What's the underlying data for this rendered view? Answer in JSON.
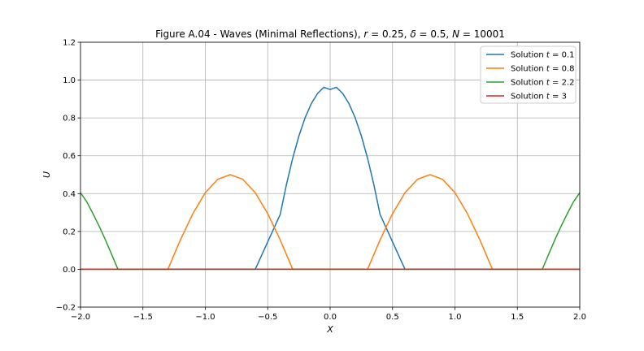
{
  "chart_data": {
    "type": "line",
    "title": "Figure A.04 - Waves (Minimal Reflections), r = 0.25, δ = 0.5, N = 10001",
    "title_parts": {
      "prefix": "Figure A.04 - Waves (Minimal Reflections), ",
      "r_sym": "r",
      "r_val": " = 0.25, ",
      "delta_sym": "δ",
      "delta_val": " = 0.5, ",
      "n_sym": "N",
      "n_val": " = 10001"
    },
    "xlabel": "X",
    "ylabel": "U",
    "xlim": [
      -2.0,
      2.0
    ],
    "ylim": [
      -0.2,
      1.2
    ],
    "xticks": [
      -2.0,
      -1.5,
      -1.0,
      -0.5,
      0.0,
      0.5,
      1.0,
      1.5,
      2.0
    ],
    "xtick_labels": [
      "−2.0",
      "−1.5",
      "−1.0",
      "−0.5",
      "0.0",
      "0.5",
      "1.0",
      "1.5",
      "2.0"
    ],
    "yticks": [
      -0.2,
      0.0,
      0.2,
      0.4,
      0.6,
      0.8,
      1.0,
      1.2
    ],
    "ytick_labels": [
      "−0.2",
      "0.0",
      "0.2",
      "0.4",
      "0.6",
      "0.8",
      "1.0",
      "1.2"
    ],
    "grid": true,
    "legend_position": "top-right",
    "series": [
      {
        "name": "Solution t = 0.1",
        "label_prefix": "Solution ",
        "label_var": "t",
        "label_val": " = 0.1",
        "color": "#1f77b4",
        "x": [
          -2.0,
          -0.6,
          -0.4,
          -0.35,
          -0.3,
          -0.25,
          -0.2,
          -0.15,
          -0.1,
          -0.05,
          0.0,
          0.05,
          0.1,
          0.15,
          0.2,
          0.25,
          0.3,
          0.35,
          0.4,
          0.6,
          2.0
        ],
        "y": [
          0.0,
          0.0,
          0.29,
          0.448,
          0.587,
          0.705,
          0.802,
          0.877,
          0.93,
          0.962,
          0.95,
          0.962,
          0.93,
          0.877,
          0.802,
          0.705,
          0.587,
          0.448,
          0.29,
          0.0,
          0.0
        ]
      },
      {
        "name": "Solution t = 0.8",
        "label_prefix": "Solution ",
        "label_var": "t",
        "label_val": " = 0.8",
        "color": "#ff7f0e",
        "x": [
          -2.0,
          -1.3,
          -1.2,
          -1.1,
          -1.0,
          -0.9,
          -0.8,
          -0.7,
          -0.6,
          -0.5,
          -0.4,
          -0.3,
          0.3,
          0.4,
          0.5,
          0.6,
          0.7,
          0.8,
          0.9,
          1.0,
          1.1,
          1.2,
          1.3,
          2.0
        ],
        "y": [
          0.0,
          0.0,
          0.155,
          0.294,
          0.405,
          0.476,
          0.5,
          0.476,
          0.405,
          0.294,
          0.155,
          0.0,
          0.0,
          0.155,
          0.294,
          0.405,
          0.476,
          0.5,
          0.476,
          0.405,
          0.294,
          0.155,
          0.0,
          0.0
        ]
      },
      {
        "name": "Solution t = 2.2",
        "label_prefix": "Solution ",
        "label_var": "t",
        "label_val": " = 2.2",
        "color": "#2ca02c",
        "x": [
          -2.0,
          -1.95,
          -1.9,
          -1.85,
          -1.8,
          -1.75,
          -1.7,
          1.7,
          1.75,
          1.8,
          1.85,
          1.9,
          1.95,
          2.0
        ],
        "y": [
          0.405,
          0.357,
          0.294,
          0.227,
          0.155,
          0.078,
          0.0,
          0.0,
          0.078,
          0.155,
          0.227,
          0.294,
          0.357,
          0.405
        ]
      },
      {
        "name": "Solution t = 3",
        "label_prefix": "Solution ",
        "label_var": "t",
        "label_val": " = 3",
        "color": "#d62728",
        "x": [
          -2.0,
          2.0
        ],
        "y": [
          0.0,
          0.0
        ]
      }
    ]
  }
}
